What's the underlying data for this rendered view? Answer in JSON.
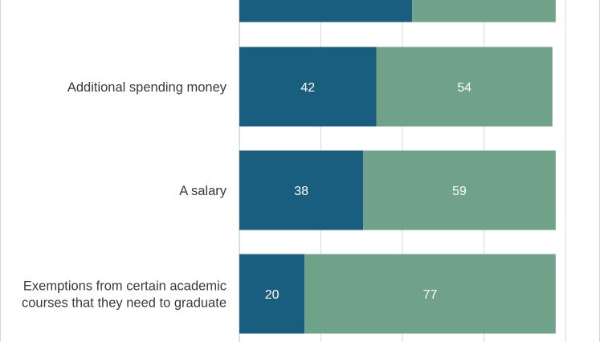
{
  "chart_data": {
    "type": "bar",
    "orientation": "horizontal",
    "stacked": true,
    "categories": [
      "",
      "Additional spending money",
      "A salary",
      "Exemptions from certain academic courses that they need to graduate"
    ],
    "category_lines": [
      [
        ""
      ],
      [
        "Additional spending money"
      ],
      [
        "A salary"
      ],
      [
        "Exemptions from certain academic",
        "courses that they need to graduate"
      ]
    ],
    "series": [
      {
        "values": [
          53,
          42,
          38,
          20
        ],
        "color": "#195e7e"
      },
      {
        "values": [
          44,
          54,
          59,
          77
        ],
        "color": "#6fa288"
      }
    ],
    "data_labels": [
      [
        "",
        "42",
        "38",
        "20"
      ],
      [
        "",
        "54",
        "59",
        "77"
      ]
    ],
    "xlim": [
      0,
      100
    ],
    "grid": true,
    "legend": "none",
    "title": "",
    "xlabel": "",
    "ylabel": ""
  }
}
